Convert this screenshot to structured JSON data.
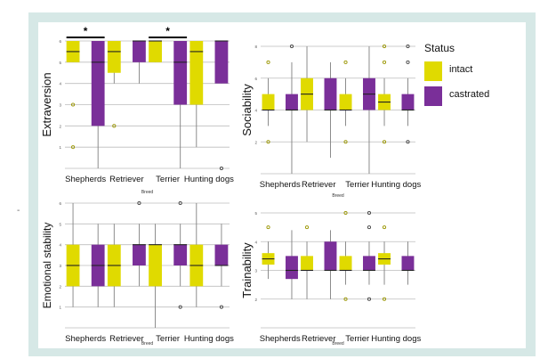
{
  "colors": {
    "intact": "#e0da00",
    "castrated": "#7a2f99",
    "grid": "#bdbdbd",
    "whisker": "#808080",
    "frame": "#d6e8e6"
  },
  "legend": {
    "title": "Status",
    "items": [
      {
        "label": "intact",
        "color": "#e0da00"
      },
      {
        "label": "castrated",
        "color": "#7a2f99"
      }
    ]
  },
  "side_mark": "-",
  "chart_data": [
    {
      "type": "box",
      "ylabel": "Extraversion",
      "xlabel": "Breed",
      "ylim": [
        0,
        6
      ],
      "yticks": [
        1,
        2,
        3,
        4,
        5,
        6
      ],
      "grid": true,
      "categories": [
        "Shepherds",
        "Retriever",
        "Terrier",
        "Hunting dogs"
      ],
      "series": [
        {
          "name": "intact",
          "boxes": [
            {
              "min": 5,
              "q1": 5,
              "median": 5.5,
              "q3": 6,
              "max": 6,
              "outliers": [
                3,
                1
              ]
            },
            {
              "min": 4,
              "q1": 4.5,
              "median": 5.5,
              "q3": 6,
              "max": 6,
              "outliers": [
                2
              ]
            },
            {
              "min": 5,
              "q1": 5,
              "median": 6,
              "q3": 6,
              "max": 6,
              "outliers": []
            },
            {
              "min": 1,
              "q1": 3,
              "median": 5.5,
              "q3": 6,
              "max": 6,
              "outliers": []
            }
          ]
        },
        {
          "name": "castrated",
          "boxes": [
            {
              "min": 0,
              "q1": 2,
              "median": 5,
              "q3": 6,
              "max": 6,
              "outliers": []
            },
            {
              "min": 4,
              "q1": 5,
              "median": 6,
              "q3": 6,
              "max": 6,
              "outliers": []
            },
            {
              "min": 0,
              "q1": 3,
              "median": 5,
              "q3": 6,
              "max": 6,
              "outliers": []
            },
            {
              "min": 4,
              "q1": 4,
              "median": 6,
              "q3": 6,
              "max": 6,
              "outliers": [
                0
              ]
            }
          ]
        }
      ],
      "significance": [
        {
          "category": "Shepherds",
          "label": "*"
        },
        {
          "category": "Terrier",
          "label": "*"
        }
      ]
    },
    {
      "type": "box",
      "ylabel": "Sociability",
      "xlabel": "Breed",
      "ylim": [
        0,
        8
      ],
      "yticks": [
        2,
        4,
        6,
        8
      ],
      "grid": true,
      "categories": [
        "Shepherds",
        "Retriever",
        "Terrier",
        "Hunting dogs"
      ],
      "series": [
        {
          "name": "intact",
          "boxes": [
            {
              "min": 3,
              "q1": 4,
              "median": 4,
              "q3": 5,
              "max": 6,
              "outliers": [
                7,
                2
              ]
            },
            {
              "min": 2,
              "q1": 4,
              "median": 5,
              "q3": 6,
              "max": 8,
              "outliers": []
            },
            {
              "min": 3,
              "q1": 4,
              "median": 4,
              "q3": 5,
              "max": 6,
              "outliers": [
                7,
                2
              ]
            },
            {
              "min": 3,
              "q1": 4,
              "median": 4.5,
              "q3": 5,
              "max": 6,
              "outliers": [
                8,
                7,
                2
              ]
            }
          ]
        },
        {
          "name": "castrated",
          "boxes": [
            {
              "min": 0,
              "q1": 4,
              "median": 4,
              "q3": 5,
              "max": 7,
              "outliers": [
                8
              ]
            },
            {
              "min": 1,
              "q1": 4,
              "median": 4,
              "q3": 6,
              "max": 7,
              "outliers": []
            },
            {
              "min": 0,
              "q1": 4,
              "median": 5,
              "q3": 6,
              "max": 8,
              "outliers": []
            },
            {
              "min": 3,
              "q1": 4,
              "median": 4,
              "q3": 5,
              "max": 6,
              "outliers": [
                8,
                7,
                2
              ]
            }
          ]
        }
      ],
      "significance": []
    },
    {
      "type": "box",
      "ylabel": "Emotional stability",
      "xlabel": "Breed",
      "ylim": [
        0,
        6
      ],
      "yticks": [
        1,
        2,
        3,
        4,
        5,
        6
      ],
      "grid": true,
      "categories": [
        "Shepherds",
        "Retriever",
        "Terrier",
        "Hunting dogs"
      ],
      "series": [
        {
          "name": "intact",
          "boxes": [
            {
              "min": 1,
              "q1": 2,
              "median": 3,
              "q3": 4,
              "max": 6,
              "outliers": []
            },
            {
              "min": 1,
              "q1": 2,
              "median": 3,
              "q3": 4,
              "max": 5,
              "outliers": []
            },
            {
              "min": 0,
              "q1": 2,
              "median": 4,
              "q3": 4,
              "max": 5,
              "outliers": []
            },
            {
              "min": 1,
              "q1": 2,
              "median": 3,
              "q3": 4,
              "max": 6,
              "outliers": []
            }
          ]
        },
        {
          "name": "castrated",
          "boxes": [
            {
              "min": 1,
              "q1": 2,
              "median": 3,
              "q3": 4,
              "max": 5,
              "outliers": []
            },
            {
              "min": 2,
              "q1": 3,
              "median": 4,
              "q3": 4,
              "max": 5,
              "outliers": [
                6
              ]
            },
            {
              "min": 2,
              "q1": 3,
              "median": 4,
              "q3": 4,
              "max": 5,
              "outliers": [
                6,
                1
              ]
            },
            {
              "min": 2,
              "q1": 3,
              "median": 3,
              "q3": 4,
              "max": 5,
              "outliers": [
                1
              ]
            }
          ]
        }
      ],
      "significance": []
    },
    {
      "type": "box",
      "ylabel": "Trainability",
      "xlabel": "Breed",
      "ylim": [
        1,
        5
      ],
      "yticks": [
        2,
        3,
        4,
        5
      ],
      "grid": true,
      "categories": [
        "Shepherds",
        "Retriever",
        "Terrier",
        "Hunting dogs"
      ],
      "series": [
        {
          "name": "intact",
          "boxes": [
            {
              "min": 2.7,
              "q1": 3.2,
              "median": 3.4,
              "q3": 3.6,
              "max": 4,
              "outliers": [
                4.5
              ]
            },
            {
              "min": 2,
              "q1": 3,
              "median": 3,
              "q3": 3.5,
              "max": 4,
              "outliers": [
                4.5
              ]
            },
            {
              "min": 2.5,
              "q1": 3,
              "median": 3,
              "q3": 3.5,
              "max": 4,
              "outliers": [
                5,
                2
              ]
            },
            {
              "min": 2.5,
              "q1": 3.2,
              "median": 3.4,
              "q3": 3.6,
              "max": 4,
              "outliers": [
                4.5,
                2
              ]
            }
          ]
        },
        {
          "name": "castrated",
          "boxes": [
            {
              "min": 2,
              "q1": 2.7,
              "median": 3,
              "q3": 3.5,
              "max": 4.4,
              "outliers": []
            },
            {
              "min": 2,
              "q1": 3,
              "median": 3,
              "q3": 4,
              "max": 4.4,
              "outliers": []
            },
            {
              "min": 2.5,
              "q1": 3,
              "median": 3,
              "q3": 3.5,
              "max": 4,
              "outliers": [
                5,
                4.5,
                2
              ]
            },
            {
              "min": 2.5,
              "q1": 3,
              "median": 3,
              "q3": 3.5,
              "max": 4,
              "outliers": []
            }
          ]
        }
      ],
      "significance": []
    }
  ]
}
